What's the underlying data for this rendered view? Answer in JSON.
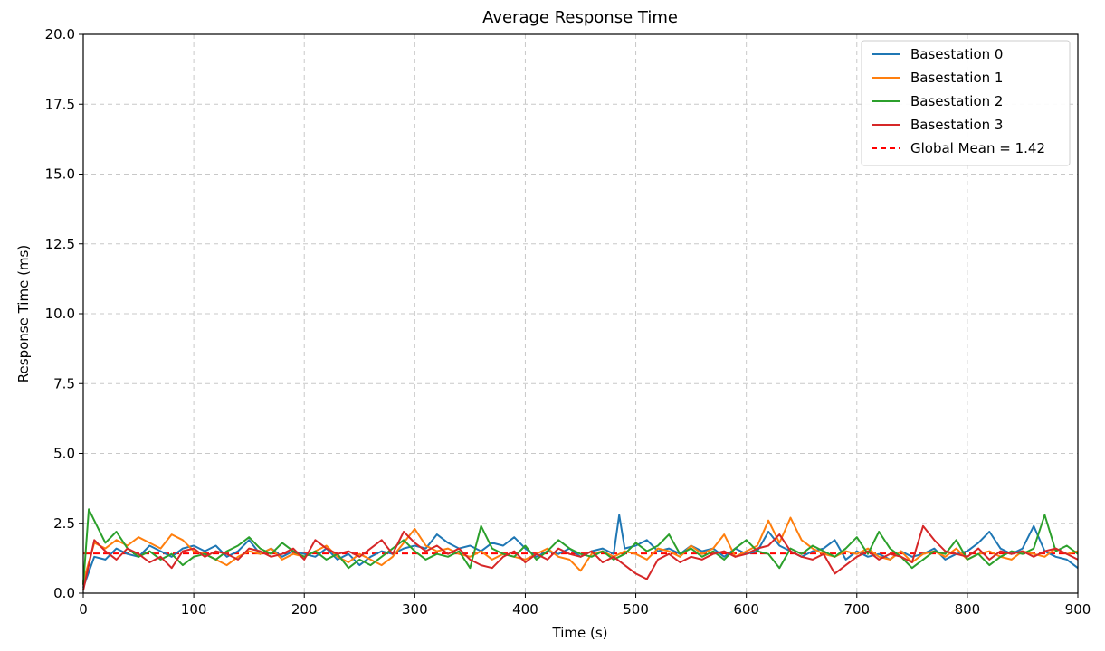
{
  "chart_data": {
    "type": "line",
    "title": "Average Response Time",
    "xlabel": "Time (s)",
    "ylabel": "Response Time (ms)",
    "xlim": [
      0,
      900
    ],
    "ylim": [
      0,
      20
    ],
    "xticks": [
      0,
      100,
      200,
      300,
      400,
      500,
      600,
      700,
      800,
      900
    ],
    "yticks": [
      0.0,
      2.5,
      5.0,
      7.5,
      10.0,
      12.5,
      15.0,
      17.5,
      20.0
    ],
    "xtick_labels": [
      "0",
      "100",
      "200",
      "300",
      "400",
      "500",
      "600",
      "700",
      "800",
      "900"
    ],
    "ytick_labels": [
      "0.0",
      "2.5",
      "5.0",
      "7.5",
      "10.0",
      "12.5",
      "15.0",
      "17.5",
      "20.0"
    ],
    "grid": true,
    "legend_position": "top-right",
    "series": [
      {
        "name": "Basestation 0",
        "color": "#1f77b4",
        "x": [
          0,
          10,
          20,
          30,
          40,
          50,
          60,
          70,
          80,
          90,
          100,
          110,
          120,
          130,
          140,
          150,
          160,
          170,
          180,
          190,
          200,
          210,
          220,
          230,
          240,
          250,
          260,
          270,
          280,
          290,
          300,
          310,
          320,
          330,
          340,
          350,
          360,
          370,
          380,
          390,
          400,
          410,
          420,
          430,
          440,
          450,
          460,
          470,
          480,
          485,
          490,
          500,
          510,
          520,
          530,
          540,
          550,
          560,
          570,
          580,
          590,
          600,
          610,
          620,
          630,
          640,
          650,
          660,
          670,
          680,
          690,
          700,
          710,
          720,
          730,
          740,
          750,
          760,
          770,
          780,
          790,
          800,
          810,
          820,
          830,
          840,
          850,
          860,
          870,
          880,
          890,
          900
        ],
        "values": [
          0.2,
          1.3,
          1.2,
          1.6,
          1.4,
          1.3,
          1.7,
          1.5,
          1.3,
          1.6,
          1.7,
          1.5,
          1.7,
          1.3,
          1.5,
          1.9,
          1.4,
          1.6,
          1.3,
          1.5,
          1.4,
          1.3,
          1.6,
          1.2,
          1.4,
          1.0,
          1.3,
          1.5,
          1.4,
          1.6,
          1.7,
          1.6,
          2.1,
          1.8,
          1.6,
          1.7,
          1.5,
          1.8,
          1.7,
          2.0,
          1.6,
          1.3,
          1.5,
          1.4,
          1.6,
          1.3,
          1.5,
          1.6,
          1.4,
          2.8,
          1.6,
          1.7,
          1.9,
          1.5,
          1.6,
          1.4,
          1.7,
          1.5,
          1.6,
          1.3,
          1.6,
          1.4,
          1.5,
          2.2,
          1.7,
          1.5,
          1.3,
          1.5,
          1.6,
          1.9,
          1.2,
          1.5,
          1.3,
          1.4,
          1.2,
          1.5,
          1.3,
          1.4,
          1.6,
          1.2,
          1.4,
          1.5,
          1.8,
          2.2,
          1.6,
          1.4,
          1.6,
          2.4,
          1.5,
          1.3,
          1.2,
          0.9
        ]
      },
      {
        "name": "Basestation 1",
        "color": "#ff7f0e",
        "x": [
          0,
          10,
          20,
          30,
          40,
          50,
          60,
          70,
          80,
          90,
          100,
          110,
          120,
          130,
          140,
          150,
          160,
          170,
          180,
          190,
          200,
          210,
          220,
          230,
          240,
          250,
          260,
          270,
          280,
          290,
          300,
          310,
          320,
          330,
          340,
          350,
          360,
          370,
          380,
          390,
          400,
          410,
          420,
          430,
          440,
          450,
          460,
          470,
          480,
          490,
          500,
          510,
          520,
          530,
          540,
          550,
          560,
          570,
          580,
          590,
          600,
          610,
          620,
          630,
          640,
          650,
          660,
          670,
          680,
          690,
          700,
          710,
          720,
          730,
          740,
          750,
          760,
          770,
          780,
          790,
          800,
          810,
          820,
          830,
          840,
          850,
          860,
          870,
          880,
          890,
          900
        ],
        "values": [
          0.4,
          1.8,
          1.6,
          1.9,
          1.7,
          2.0,
          1.8,
          1.6,
          2.1,
          1.9,
          1.5,
          1.4,
          1.2,
          1.0,
          1.3,
          1.5,
          1.4,
          1.6,
          1.2,
          1.4,
          1.3,
          1.5,
          1.7,
          1.3,
          1.1,
          1.4,
          1.2,
          1.0,
          1.3,
          1.8,
          2.3,
          1.7,
          1.5,
          1.6,
          1.4,
          1.3,
          1.5,
          1.2,
          1.4,
          1.3,
          1.2,
          1.4,
          1.6,
          1.3,
          1.2,
          0.8,
          1.4,
          1.5,
          1.3,
          1.5,
          1.4,
          1.2,
          1.6,
          1.5,
          1.3,
          1.7,
          1.4,
          1.6,
          2.1,
          1.3,
          1.5,
          1.7,
          2.6,
          1.8,
          2.7,
          1.9,
          1.6,
          1.4,
          1.3,
          1.5,
          1.4,
          1.6,
          1.3,
          1.2,
          1.5,
          1.1,
          1.4,
          1.5,
          1.3,
          1.6,
          1.2,
          1.4,
          1.5,
          1.3,
          1.2,
          1.5,
          1.4,
          1.3,
          1.6,
          1.4,
          1.5
        ]
      },
      {
        "name": "Basestation 2",
        "color": "#2ca02c",
        "x": [
          0,
          5,
          10,
          20,
          30,
          40,
          50,
          60,
          70,
          80,
          90,
          100,
          110,
          120,
          130,
          140,
          150,
          160,
          170,
          180,
          190,
          200,
          210,
          220,
          230,
          240,
          250,
          260,
          270,
          280,
          290,
          300,
          310,
          320,
          330,
          340,
          350,
          360,
          370,
          380,
          390,
          400,
          410,
          420,
          430,
          440,
          450,
          460,
          470,
          480,
          490,
          500,
          510,
          520,
          530,
          540,
          550,
          560,
          570,
          580,
          590,
          600,
          610,
          620,
          630,
          640,
          650,
          660,
          670,
          680,
          690,
          700,
          710,
          720,
          730,
          740,
          750,
          760,
          770,
          780,
          790,
          800,
          810,
          820,
          830,
          840,
          850,
          860,
          870,
          880,
          890,
          900
        ],
        "values": [
          0.3,
          3.0,
          2.6,
          1.8,
          2.2,
          1.6,
          1.3,
          1.5,
          1.2,
          1.4,
          1.0,
          1.3,
          1.4,
          1.2,
          1.5,
          1.7,
          2.0,
          1.6,
          1.4,
          1.8,
          1.5,
          1.3,
          1.5,
          1.2,
          1.4,
          0.9,
          1.2,
          1.0,
          1.3,
          1.6,
          1.9,
          1.5,
          1.2,
          1.4,
          1.3,
          1.5,
          0.9,
          2.4,
          1.6,
          1.4,
          1.3,
          1.7,
          1.2,
          1.5,
          1.9,
          1.6,
          1.4,
          1.3,
          1.5,
          1.2,
          1.4,
          1.8,
          1.5,
          1.7,
          2.1,
          1.4,
          1.6,
          1.3,
          1.5,
          1.2,
          1.6,
          1.9,
          1.5,
          1.4,
          0.9,
          1.6,
          1.4,
          1.7,
          1.5,
          1.3,
          1.6,
          2.0,
          1.4,
          2.2,
          1.6,
          1.3,
          0.9,
          1.2,
          1.5,
          1.4,
          1.9,
          1.2,
          1.4,
          1.0,
          1.3,
          1.5,
          1.4,
          1.6,
          2.8,
          1.5,
          1.7,
          1.4
        ]
      },
      {
        "name": "Basestation 3",
        "color": "#d62728",
        "x": [
          0,
          10,
          20,
          30,
          40,
          50,
          60,
          70,
          80,
          90,
          100,
          110,
          120,
          130,
          140,
          150,
          160,
          170,
          180,
          190,
          200,
          210,
          220,
          230,
          240,
          250,
          260,
          270,
          280,
          290,
          300,
          310,
          320,
          330,
          340,
          350,
          360,
          370,
          380,
          390,
          400,
          410,
          420,
          430,
          440,
          450,
          460,
          470,
          480,
          490,
          500,
          510,
          520,
          530,
          540,
          550,
          560,
          570,
          580,
          590,
          600,
          610,
          620,
          630,
          640,
          650,
          660,
          670,
          680,
          690,
          700,
          710,
          720,
          730,
          740,
          750,
          760,
          770,
          780,
          790,
          800,
          810,
          820,
          830,
          840,
          850,
          860,
          870,
          880,
          890,
          900
        ],
        "values": [
          0.1,
          1.9,
          1.5,
          1.2,
          1.6,
          1.4,
          1.1,
          1.3,
          0.9,
          1.5,
          1.6,
          1.3,
          1.5,
          1.4,
          1.2,
          1.6,
          1.5,
          1.3,
          1.4,
          1.6,
          1.2,
          1.9,
          1.6,
          1.4,
          1.5,
          1.3,
          1.6,
          1.9,
          1.4,
          2.2,
          1.8,
          1.5,
          1.7,
          1.4,
          1.6,
          1.2,
          1.0,
          0.9,
          1.3,
          1.5,
          1.1,
          1.4,
          1.2,
          1.6,
          1.4,
          1.3,
          1.5,
          1.1,
          1.3,
          1.0,
          0.7,
          0.5,
          1.2,
          1.4,
          1.1,
          1.3,
          1.2,
          1.4,
          1.5,
          1.3,
          1.4,
          1.6,
          1.7,
          2.1,
          1.5,
          1.3,
          1.2,
          1.4,
          0.7,
          1.0,
          1.3,
          1.5,
          1.2,
          1.4,
          1.3,
          1.1,
          2.4,
          1.9,
          1.5,
          1.4,
          1.3,
          1.6,
          1.2,
          1.5,
          1.4,
          1.5,
          1.3,
          1.5,
          1.6,
          1.4,
          1.2
        ]
      }
    ],
    "reference_lines": [
      {
        "name": "Global Mean = 1.42",
        "value": 1.42,
        "color": "#ff0000",
        "style": "dashed"
      }
    ]
  }
}
